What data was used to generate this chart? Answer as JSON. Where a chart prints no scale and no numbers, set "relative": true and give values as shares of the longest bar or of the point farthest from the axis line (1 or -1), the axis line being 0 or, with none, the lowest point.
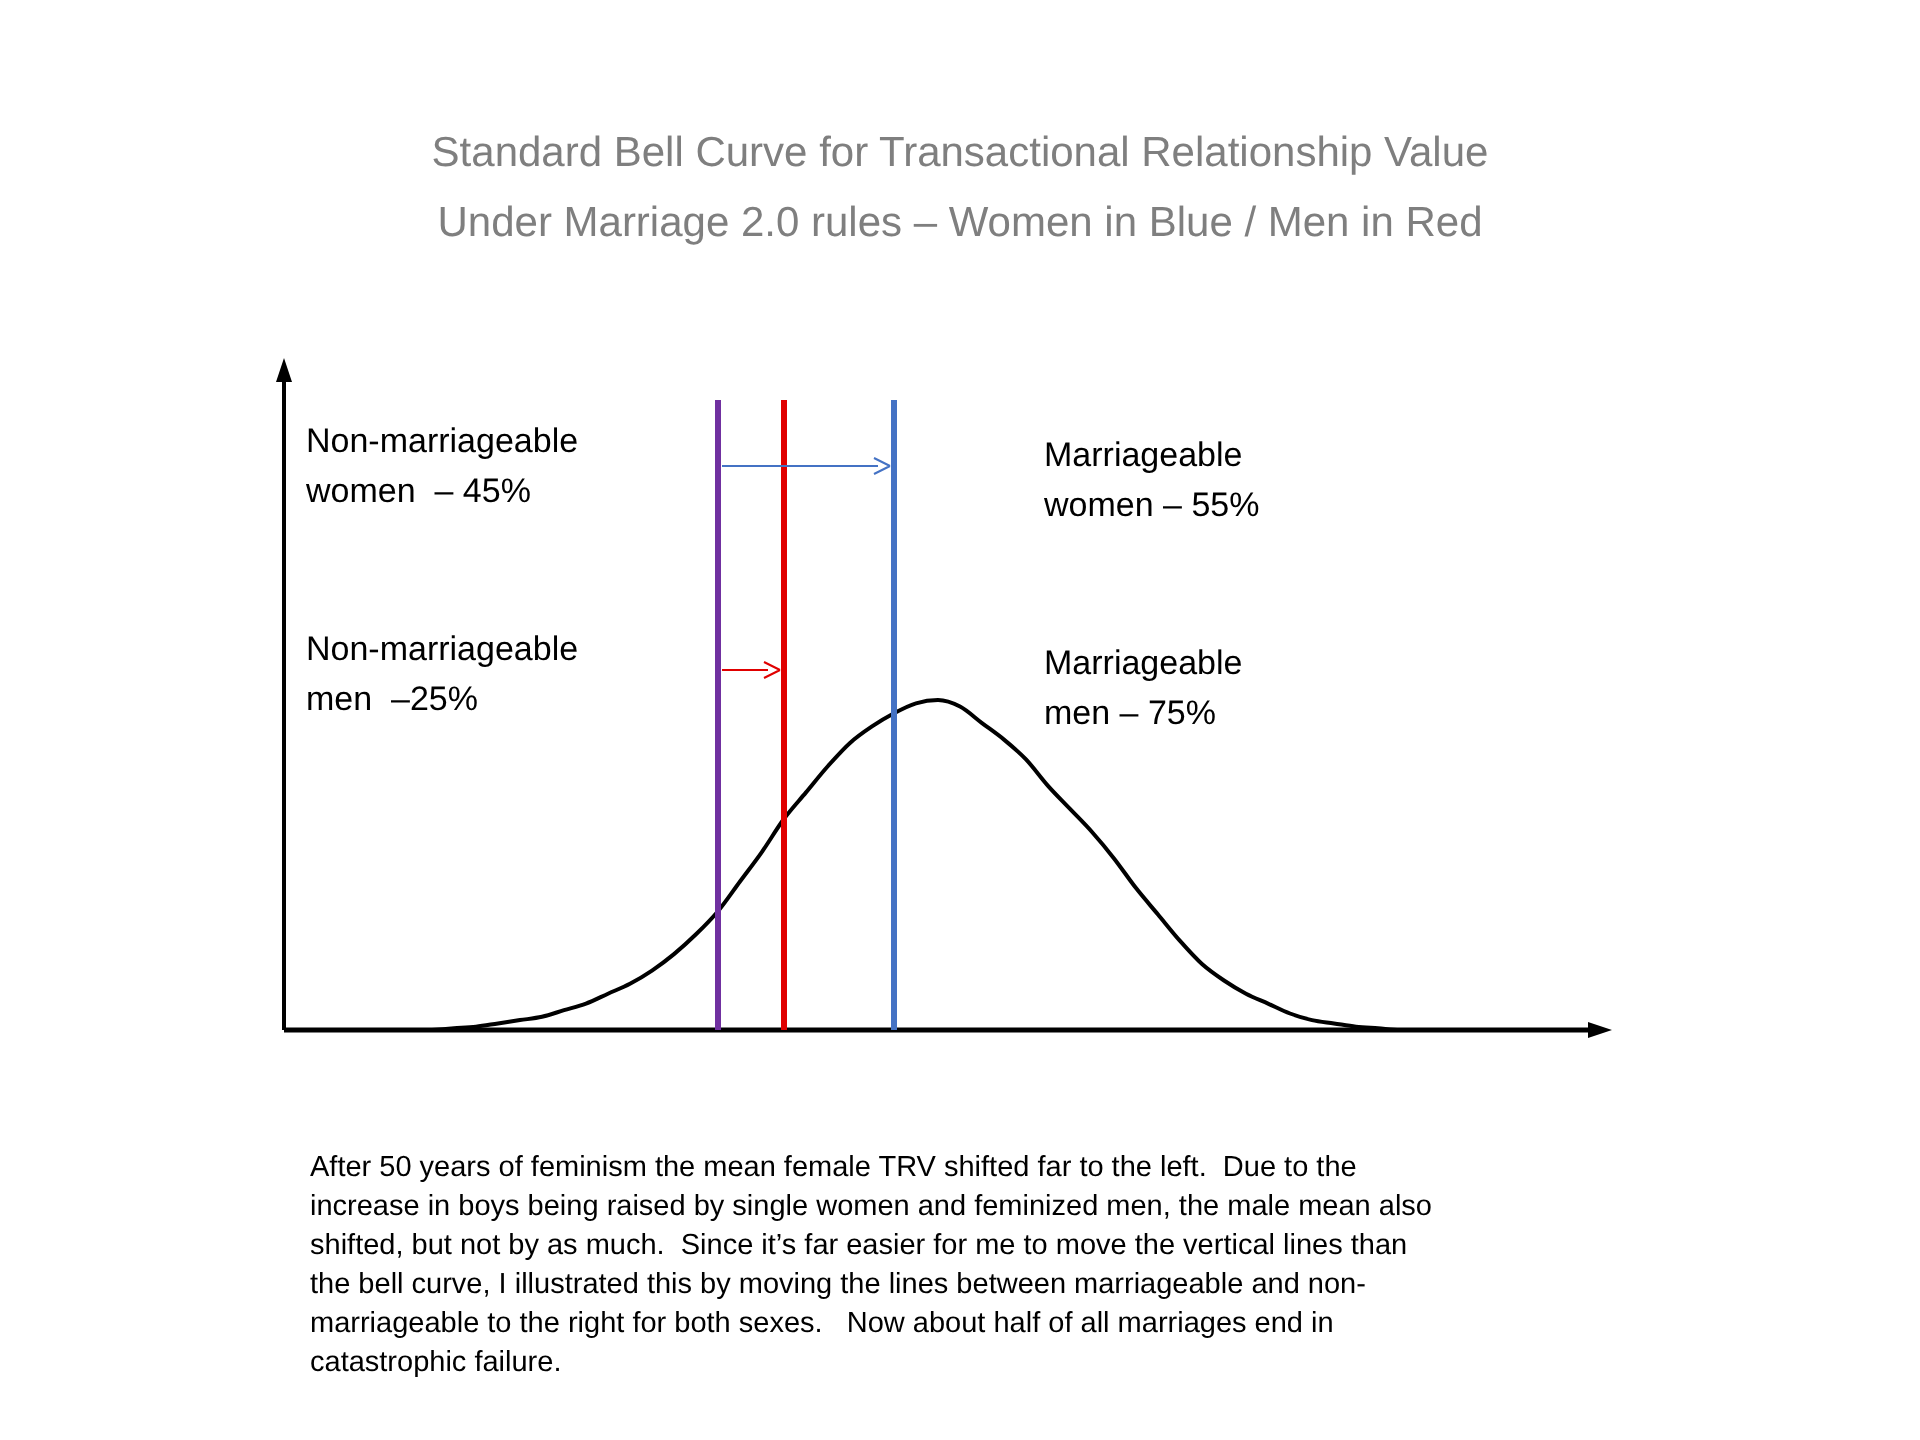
{
  "chart_data": {
    "type": "line",
    "title": "Standard Bell Curve for Transactional Relationship Value",
    "subtitle": "Under Marriage 2.0 rules – Women in Blue / Men in Red",
    "relative": true,
    "categories": [
      null,
      null,
      null,
      null,
      null,
      null,
      null,
      null,
      null,
      null,
      null,
      null,
      null,
      null,
      null,
      null,
      null,
      null,
      null,
      null,
      null,
      null,
      null,
      null,
      null,
      null,
      null,
      null,
      null,
      null,
      null,
      null,
      null,
      null,
      null,
      null,
      null,
      null,
      null,
      null,
      null,
      null,
      null,
      null,
      null,
      null
    ],
    "series": [
      {
        "color": "#000000",
        "values": [
          0,
          0.005,
          0.01,
          0.02,
          0.03,
          0.04,
          0.06,
          0.08,
          0.11,
          0.14,
          0.18,
          0.23,
          0.29,
          0.36,
          0.45,
          0.54,
          0.64,
          0.72,
          0.8,
          0.87,
          0.92,
          0.96,
          0.99,
          1,
          0.98,
          0.93,
          0.88,
          0.82,
          0.74,
          0.67,
          0.6,
          0.52,
          0.43,
          0.35,
          0.27,
          0.2,
          0.15,
          0.11,
          0.08,
          0.05,
          0.03,
          0.02,
          0.01,
          0.005,
          0,
          0
        ]
      }
    ],
    "annotations": [
      "Non-marriageable\nwomen  – 45%",
      "Marriageable\nwomen – 55%",
      "Non-marriageable\nmen  –25%",
      "Marriageable\nmen – 75%",
      "After 50 years of feminism the mean female TRV shifted far to the left.  Due to the\nincrease in boys being raised by single women and feminized men, the male mean also\nshifted, but not by as much.  Since it’s far easier for me to move the vertical lines than\nthe bell curve, I illustrated this by moving the lines between marriageable and non-\nmarriageable to the right for both sexes.   Now about half of all marriages end in\ncatastrophic failure."
    ]
  }
}
